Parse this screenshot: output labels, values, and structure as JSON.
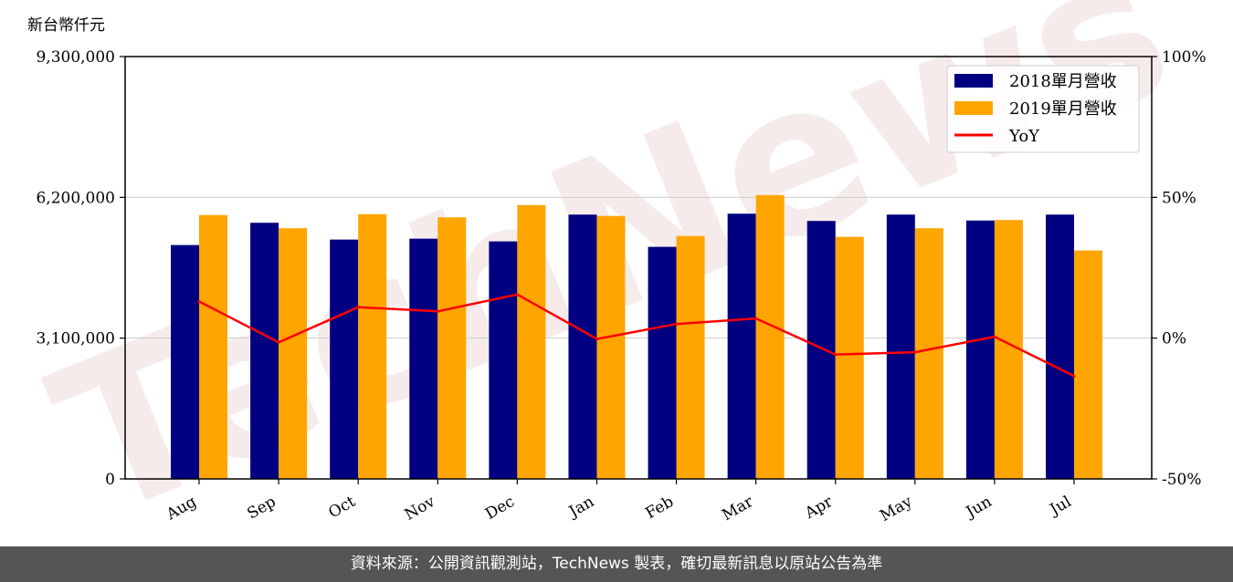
{
  "watermark": "TechNews",
  "footer": {
    "source_text": "資料來源：公開資訊觀測站，TechNews 製表，確切最新訊息以原站公告為準"
  },
  "colors": {
    "series_2018": "#000080",
    "series_2019": "#ffa500",
    "yoy": "#ff0000",
    "grid": "#cccccc",
    "footer_bg": "#555555"
  },
  "chart_data": {
    "type": "bar",
    "unit_label": "新台幣仟元",
    "categories": [
      "Aug",
      "Sep",
      "Oct",
      "Nov",
      "Dec",
      "Jan",
      "Feb",
      "Mar",
      "Apr",
      "May",
      "Jun",
      "Jul"
    ],
    "series": [
      {
        "name": "2018單月營收",
        "type": "bar",
        "axis": "left",
        "values": [
          5150000,
          5640000,
          5270000,
          5290000,
          5230000,
          5820000,
          5110000,
          5840000,
          5680000,
          5820000,
          5690000,
          5820000
        ]
      },
      {
        "name": "2019單月營收",
        "type": "bar",
        "axis": "left",
        "values": [
          5810000,
          5520000,
          5830000,
          5760000,
          6030000,
          5790000,
          5350000,
          6250000,
          5330000,
          5520000,
          5700000,
          5030000
        ]
      },
      {
        "name": "YoY",
        "type": "line",
        "axis": "right",
        "values": [
          13,
          -1.5,
          11,
          9.5,
          15.5,
          -0.3,
          5,
          7,
          -5.8,
          -5,
          0.5,
          -13.5
        ]
      }
    ],
    "y_left": {
      "lim": [
        0,
        9300000
      ],
      "ticks": [
        0,
        3100000,
        6200000,
        9300000
      ],
      "tick_labels": [
        "0",
        "3,100,000",
        "6,200,000",
        "9,300,000"
      ]
    },
    "y_right": {
      "lim": [
        -50,
        100
      ],
      "ticks": [
        -50,
        0,
        50,
        100
      ],
      "tick_labels": [
        "-50%",
        "0%",
        "50%",
        "100%"
      ]
    },
    "grid": true,
    "legend_position": "top-right"
  }
}
